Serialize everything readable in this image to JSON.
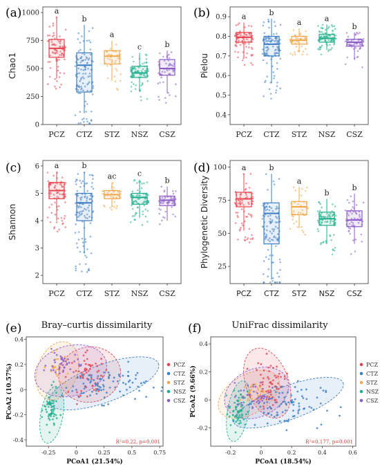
{
  "groups": [
    "PCZ",
    "CTZ",
    "STZ",
    "NSZ",
    "CSZ"
  ],
  "colors": {
    "PCZ": "#e8414d",
    "CTZ": "#3a7cc2",
    "STZ": "#f0a64a",
    "NSZ": "#1fae8c",
    "CSZ": "#8a5cc8"
  },
  "chart_data": [
    {
      "panel": "(a)",
      "type": "box",
      "ylabel": "Chao1",
      "ylim": [
        0,
        1050
      ],
      "yticks": [
        0,
        250,
        500,
        750,
        1000
      ],
      "categories": [
        "PCZ",
        "CTZ",
        "STZ",
        "NSZ",
        "CSZ"
      ],
      "series": [
        {
          "name": "PCZ",
          "min": 410,
          "q1": 600,
          "median": 680,
          "q3": 760,
          "max": 960,
          "sig": "a"
        },
        {
          "name": "CTZ",
          "min": 100,
          "q1": 290,
          "median": 530,
          "q3": 640,
          "max": 890,
          "sig": "b"
        },
        {
          "name": "STZ",
          "min": 390,
          "q1": 540,
          "median": 610,
          "q3": 660,
          "max": 750,
          "sig": "a"
        },
        {
          "name": "NSZ",
          "min": 290,
          "q1": 420,
          "median": 460,
          "q3": 520,
          "max": 640,
          "sig": "c"
        },
        {
          "name": "CSZ",
          "min": 280,
          "q1": 440,
          "median": 500,
          "q3": 580,
          "max": 660,
          "sig": "b"
        }
      ]
    },
    {
      "panel": "(b)",
      "type": "box",
      "ylabel": "Pielou",
      "ylim": [
        0.35,
        0.95
      ],
      "yticks": [
        0.4,
        0.5,
        0.6,
        0.7,
        0.8,
        0.9
      ],
      "categories": [
        "PCZ",
        "CTZ",
        "STZ",
        "NSZ",
        "CSZ"
      ],
      "series": [
        {
          "name": "PCZ",
          "min": 0.69,
          "q1": 0.77,
          "median": 0.795,
          "q3": 0.82,
          "max": 0.87,
          "sig": "a"
        },
        {
          "name": "CTZ",
          "min": 0.56,
          "q1": 0.7,
          "median": 0.76,
          "q3": 0.8,
          "max": 0.89,
          "sig": "b"
        },
        {
          "name": "STZ",
          "min": 0.72,
          "q1": 0.76,
          "median": 0.78,
          "q3": 0.8,
          "max": 0.84,
          "sig": "a"
        },
        {
          "name": "NSZ",
          "min": 0.73,
          "q1": 0.77,
          "median": 0.79,
          "q3": 0.81,
          "max": 0.86,
          "sig": "a"
        },
        {
          "name": "CSZ",
          "min": 0.68,
          "q1": 0.75,
          "median": 0.77,
          "q3": 0.785,
          "max": 0.82,
          "sig": "b"
        }
      ]
    },
    {
      "panel": "(c)",
      "type": "box",
      "ylabel": "Shannon",
      "ylim": [
        1.7,
        6.2
      ],
      "yticks": [
        2,
        3,
        4,
        5,
        6
      ],
      "categories": [
        "PCZ",
        "CTZ",
        "STZ",
        "NSZ",
        "CSZ"
      ],
      "series": [
        {
          "name": "PCZ",
          "min": 4.0,
          "q1": 4.8,
          "median": 5.1,
          "q3": 5.4,
          "max": 5.8,
          "sig": "a"
        },
        {
          "name": "CTZ",
          "min": 2.8,
          "q1": 4.0,
          "median": 4.65,
          "q3": 5.0,
          "max": 5.8,
          "sig": "b"
        },
        {
          "name": "STZ",
          "min": 4.5,
          "q1": 4.8,
          "median": 4.95,
          "q3": 5.1,
          "max": 5.4,
          "sig": "ac"
        },
        {
          "name": "NSZ",
          "min": 4.1,
          "q1": 4.6,
          "median": 4.85,
          "q3": 5.0,
          "max": 5.5,
          "sig": "c"
        },
        {
          "name": "CSZ",
          "min": 4.0,
          "q1": 4.55,
          "median": 4.75,
          "q3": 4.9,
          "max": 5.25,
          "sig": "b"
        }
      ]
    },
    {
      "panel": "(d)",
      "type": "box",
      "ylabel": "Phylogenetic Diversity",
      "ylim": [
        12,
        105
      ],
      "yticks": [
        25,
        50,
        75,
        100
      ],
      "categories": [
        "PCZ",
        "CTZ",
        "STZ",
        "NSZ",
        "CSZ"
      ],
      "series": [
        {
          "name": "PCZ",
          "min": 52,
          "q1": 70,
          "median": 76,
          "q3": 81,
          "max": 95,
          "sig": "a"
        },
        {
          "name": "CTZ",
          "min": 15,
          "q1": 42,
          "median": 65,
          "q3": 73,
          "max": 95,
          "sig": "b"
        },
        {
          "name": "STZ",
          "min": 54,
          "q1": 64,
          "median": 70,
          "q3": 74,
          "max": 85,
          "sig": "a"
        },
        {
          "name": "NSZ",
          "min": 42,
          "q1": 56,
          "median": 61,
          "q3": 66,
          "max": 76,
          "sig": "b"
        },
        {
          "name": "CSZ",
          "min": 42,
          "q1": 55,
          "median": 60,
          "q3": 67,
          "max": 80,
          "sig": "b"
        }
      ]
    },
    {
      "panel": "(e)",
      "type": "scatter",
      "title": "Bray–curtis dissimilarity",
      "xlabel": "PCoA1 (21.54%)",
      "ylabel": "PCoA2 (10.57%)",
      "xlim": [
        -0.45,
        0.78
      ],
      "ylim": [
        -0.45,
        0.42
      ],
      "xticks": [
        -0.25,
        0,
        0.25,
        0.5,
        0.75
      ],
      "yticks": [
        -0.4,
        -0.2,
        0,
        0.2,
        0.4
      ],
      "stat": "R²=0.22, p=0.001",
      "ellipses": [
        {
          "name": "PCZ",
          "cx": 0.12,
          "cy": 0.12,
          "rx": 0.28,
          "ry": 0.22,
          "angle": -10
        },
        {
          "name": "CTZ",
          "cx": 0.25,
          "cy": 0.05,
          "rx": 0.52,
          "ry": 0.15,
          "angle": -20
        },
        {
          "name": "STZ",
          "cx": -0.17,
          "cy": 0.15,
          "rx": 0.18,
          "ry": 0.24,
          "angle": 20
        },
        {
          "name": "NSZ",
          "cx": -0.22,
          "cy": -0.2,
          "rx": 0.1,
          "ry": 0.23,
          "angle": 10
        },
        {
          "name": "CSZ",
          "cx": -0.05,
          "cy": 0.15,
          "rx": 0.33,
          "ry": 0.2,
          "angle": -15
        }
      ],
      "clusters": [
        {
          "name": "PCZ",
          "cx": 0.12,
          "cy": 0.12,
          "sx": 0.09,
          "sy": 0.08,
          "n": 60
        },
        {
          "name": "CTZ",
          "cx": 0.25,
          "cy": 0.04,
          "sx": 0.19,
          "sy": 0.07,
          "n": 90
        },
        {
          "name": "STZ",
          "cx": -0.16,
          "cy": 0.18,
          "sx": 0.05,
          "sy": 0.05,
          "n": 30
        },
        {
          "name": "NSZ",
          "cx": -0.23,
          "cy": -0.17,
          "sx": 0.03,
          "sy": 0.08,
          "n": 60
        },
        {
          "name": "CSZ",
          "cx": -0.12,
          "cy": 0.2,
          "sx": 0.07,
          "sy": 0.05,
          "n": 40
        }
      ]
    },
    {
      "panel": "(f)",
      "type": "scatter",
      "title": "UniFrac dissimilarity",
      "xlabel": "PCoA1 (18.54%)",
      "ylabel": "PCoA2 (9.66%)",
      "xlim": [
        -0.33,
        0.62
      ],
      "ylim": [
        -0.33,
        0.45
      ],
      "xticks": [
        -0.2,
        0,
        0.2,
        0.4,
        0.6
      ],
      "yticks": [
        -0.2,
        0,
        0.2,
        0.4
      ],
      "stat": "R²=0.177, p=0.001",
      "ellipses": [
        {
          "name": "PCZ",
          "cx": 0.04,
          "cy": 0.12,
          "rx": 0.14,
          "ry": 0.26,
          "angle": -20
        },
        {
          "name": "CTZ",
          "cx": 0.18,
          "cy": -0.02,
          "rx": 0.38,
          "ry": 0.12,
          "angle": -20
        },
        {
          "name": "STZ",
          "cx": -0.08,
          "cy": 0.04,
          "rx": 0.22,
          "ry": 0.14,
          "angle": -30
        },
        {
          "name": "NSZ",
          "cx": -0.15,
          "cy": -0.08,
          "rx": 0.07,
          "ry": 0.22,
          "angle": 10
        },
        {
          "name": "CSZ",
          "cx": -0.03,
          "cy": 0.05,
          "rx": 0.22,
          "ry": 0.17,
          "angle": -25
        }
      ],
      "clusters": [
        {
          "name": "PCZ",
          "cx": 0.06,
          "cy": 0.12,
          "sx": 0.05,
          "sy": 0.08,
          "n": 60
        },
        {
          "name": "CTZ",
          "cx": 0.15,
          "cy": -0.03,
          "sx": 0.13,
          "sy": 0.08,
          "n": 90
        },
        {
          "name": "STZ",
          "cx": -0.06,
          "cy": 0.04,
          "sx": 0.04,
          "sy": 0.04,
          "n": 30
        },
        {
          "name": "NSZ",
          "cx": -0.15,
          "cy": -0.08,
          "sx": 0.03,
          "sy": 0.07,
          "n": 60
        },
        {
          "name": "CSZ",
          "cx": -0.05,
          "cy": 0.03,
          "sx": 0.05,
          "sy": 0.05,
          "n": 40
        }
      ]
    }
  ]
}
